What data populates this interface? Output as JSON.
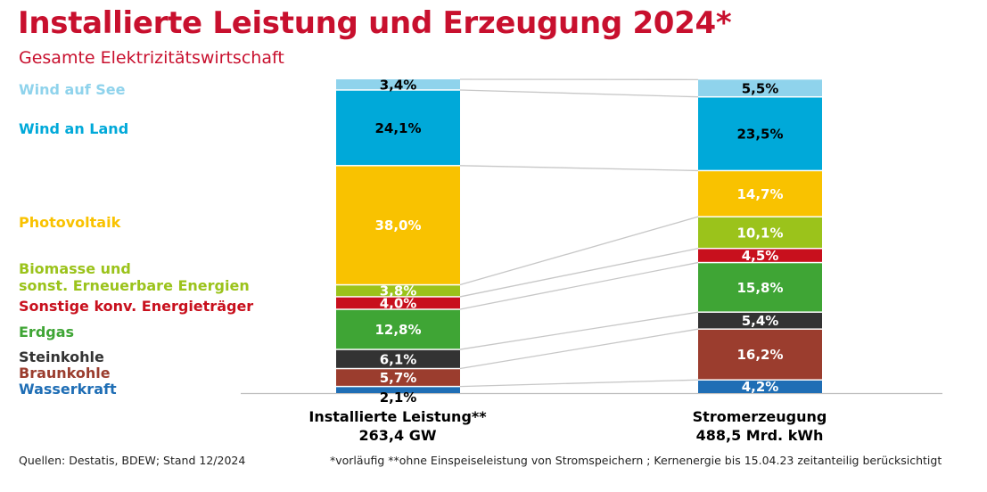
{
  "header": {
    "title": "Installierte Leistung und Erzeugung 2024*",
    "subtitle": "Gesamte Elektrizitätswirtschaft"
  },
  "footer": {
    "sources": "Quellen: Destatis, BDEW; Stand 12/2024",
    "notes": "*vorläufig  **ohne Einspeiseleistung von Stromspeichern ; Kernenergie bis 15.04.23 zeitanteilig berücksichtigt"
  },
  "legend": [
    {
      "key": "wind-see",
      "label": "Wind auf See",
      "color": "#8fd3ec"
    },
    {
      "key": "wind-land",
      "label": "Wind an Land",
      "color": "#00a9d9"
    },
    {
      "key": "pv",
      "label": "Photovoltaik",
      "color": "#f9c200"
    },
    {
      "key": "biomasse",
      "label": "Biomasse und\nsonst. Erneuerbare Energien",
      "color": "#9bc31b"
    },
    {
      "key": "sonstige",
      "label": "Sonstige konv. Energieträger",
      "color": "#c8101d"
    },
    {
      "key": "erdgas",
      "label": "Erdgas",
      "color": "#3fa535"
    },
    {
      "key": "steinkohle",
      "label": "Steinkohle",
      "color": "#333333"
    },
    {
      "key": "braunkohle",
      "label": "Braunkohle",
      "color": "#9b3d2e"
    },
    {
      "key": "wasserkraft",
      "label": "Wasserkraft",
      "color": "#1f6eb5"
    }
  ],
  "chart_data": {
    "type": "bar",
    "stacked": true,
    "normalized_percent": true,
    "title": "Installierte Leistung und Erzeugung 2024*",
    "subtitle": "Gesamte Elektrizitätswirtschaft",
    "categories": [
      "Installierte Leistung**",
      "Stromerzeugung"
    ],
    "category_totals": [
      "263,4 GW",
      "488,5 Mrd. kWh"
    ],
    "stack_order_bottom_to_top": [
      "Wasserkraft",
      "Braunkohle",
      "Steinkohle",
      "Erdgas",
      "Sonstige konv. Energieträger",
      "Biomasse und sonst. Erneuerbare Energien",
      "Photovoltaik",
      "Wind an Land",
      "Wind auf See"
    ],
    "series": [
      {
        "name": "Wasserkraft",
        "color": "#1f6eb5",
        "values": [
          2.1,
          4.2
        ],
        "labels": [
          "2,1%",
          "4,2%"
        ],
        "label_colors": [
          "#000000",
          "#ffffff"
        ]
      },
      {
        "name": "Braunkohle",
        "color": "#9b3d2e",
        "values": [
          5.7,
          16.2
        ],
        "labels": [
          "5,7%",
          "16,2%"
        ],
        "label_colors": [
          "#ffffff",
          "#ffffff"
        ]
      },
      {
        "name": "Steinkohle",
        "color": "#333333",
        "values": [
          6.1,
          5.4
        ],
        "labels": [
          "6,1%",
          "5,4%"
        ],
        "label_colors": [
          "#ffffff",
          "#ffffff"
        ]
      },
      {
        "name": "Erdgas",
        "color": "#3fa535",
        "values": [
          12.8,
          15.8
        ],
        "labels": [
          "12,8%",
          "15,8%"
        ],
        "label_colors": [
          "#ffffff",
          "#ffffff"
        ]
      },
      {
        "name": "Sonstige konv. Energieträger",
        "color": "#c8101d",
        "values": [
          4.0,
          4.5
        ],
        "labels": [
          "4,0%",
          "4,5%"
        ],
        "label_colors": [
          "#ffffff",
          "#ffffff"
        ]
      },
      {
        "name": "Biomasse und sonst. Erneuerbare Energien",
        "color": "#9bc31b",
        "values": [
          3.8,
          10.1
        ],
        "labels": [
          "3,8%",
          "10,1%"
        ],
        "label_colors": [
          "#ffffff",
          "#ffffff"
        ]
      },
      {
        "name": "Photovoltaik",
        "color": "#f9c200",
        "values": [
          38.0,
          14.7
        ],
        "labels": [
          "38,0%",
          "14,7%"
        ],
        "label_colors": [
          "#ffffff",
          "#ffffff"
        ]
      },
      {
        "name": "Wind an Land",
        "color": "#00a9d9",
        "values": [
          24.1,
          23.5
        ],
        "labels": [
          "24,1%",
          "23,5%"
        ],
        "label_colors": [
          "#000000",
          "#000000"
        ]
      },
      {
        "name": "Wind auf See",
        "color": "#8fd3ec",
        "values": [
          3.4,
          5.5
        ],
        "labels": [
          "3,4%",
          "5,5%"
        ],
        "label_colors": [
          "#000000",
          "#000000"
        ]
      }
    ],
    "ylim": [
      0,
      100
    ],
    "xlabel": "",
    "ylabel": "",
    "connector_lines": true,
    "grid": false
  }
}
